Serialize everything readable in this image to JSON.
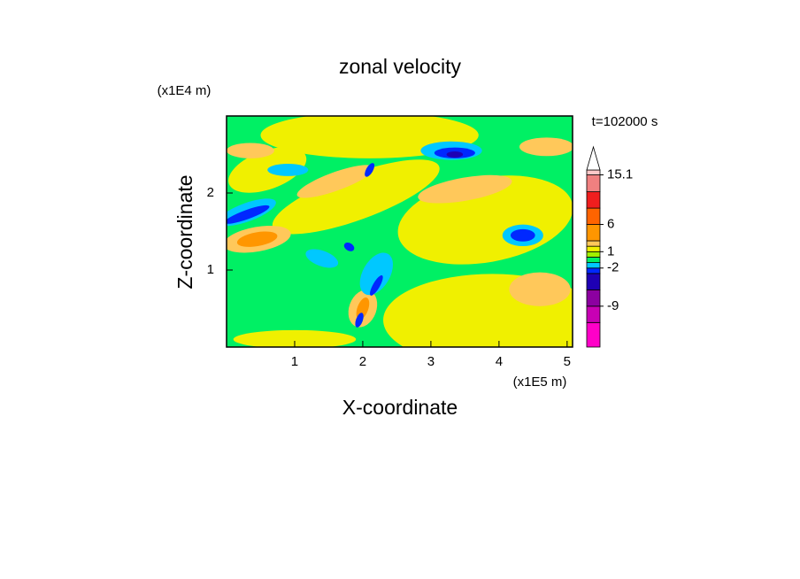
{
  "chart_data": {
    "type": "contour",
    "title": "zonal velocity",
    "x_label": "X-coordinate",
    "y_label": "Z-coordinate",
    "x_scale_label": "(x1E5 m)",
    "y_scale_label": "(x1E4 m)",
    "annotation": "t=102000 s",
    "xlim": [
      0,
      5.08
    ],
    "ylim": [
      0,
      3.0
    ],
    "xticks": [
      1,
      2,
      3,
      4,
      5
    ],
    "yticks": [
      1,
      2
    ],
    "colorbar": {
      "levels": [
        -16.5,
        -12,
        -9,
        -6,
        -3,
        -2,
        -1,
        0,
        1,
        2,
        3,
        6,
        9,
        12,
        15.1,
        16
      ],
      "colors": [
        "#ff00c8",
        "#c800b4",
        "#8c00a0",
        "#1e00b4",
        "#0028ff",
        "#00c8ff",
        "#00f064",
        "#a0f000",
        "#f0f000",
        "#ffc85a",
        "#ff9600",
        "#ff6400",
        "#f01e1e",
        "#f08080",
        "#ffc8c8"
      ],
      "extend_color": "#ffffff",
      "ticks": [
        15.1,
        6,
        1,
        -2,
        -9
      ]
    }
  }
}
